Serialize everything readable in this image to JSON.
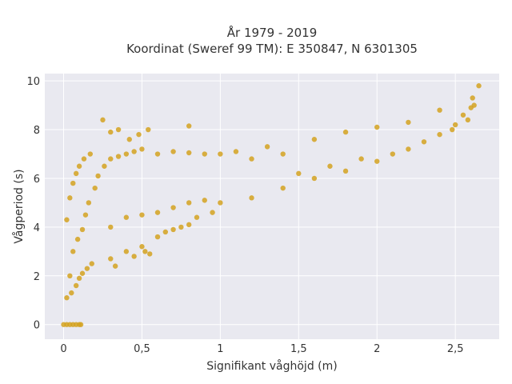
{
  "chart_data": {
    "type": "scatter",
    "title_line1": "År 1979 - 2019",
    "title_line2": "Koordinat (Sweref 99 TM): E 350847, N 6301305",
    "xlabel": "Signifikant våghöjd (m)",
    "ylabel": "Vågperiod (s)",
    "xlim": [
      -0.12,
      2.78
    ],
    "ylim": [
      -0.6,
      10.3
    ],
    "x_ticks": [
      0,
      0.5,
      1,
      1.5,
      2,
      2.5
    ],
    "x_tick_labels": [
      "0",
      "0,5",
      "1",
      "1,5",
      "2",
      "2,5"
    ],
    "y_ticks": [
      0,
      2,
      4,
      6,
      8,
      10
    ],
    "y_tick_labels": [
      "0",
      "2",
      "4",
      "6",
      "8",
      "10"
    ],
    "grid": true,
    "marker_color": "#D4A220",
    "plot_bg": "#E9E9F0",
    "points": [
      [
        0.0,
        0.0
      ],
      [
        0.02,
        0.0
      ],
      [
        0.04,
        0.0
      ],
      [
        0.06,
        0.0
      ],
      [
        0.08,
        0.0
      ],
      [
        0.1,
        0.0
      ],
      [
        0.11,
        0.0
      ],
      [
        0.02,
        1.1
      ],
      [
        0.05,
        1.3
      ],
      [
        0.08,
        1.6
      ],
      [
        0.1,
        1.9
      ],
      [
        0.12,
        2.1
      ],
      [
        0.15,
        2.3
      ],
      [
        0.18,
        2.5
      ],
      [
        0.02,
        4.3
      ],
      [
        0.04,
        5.2
      ],
      [
        0.06,
        5.8
      ],
      [
        0.08,
        6.2
      ],
      [
        0.1,
        6.5
      ],
      [
        0.13,
        6.8
      ],
      [
        0.17,
        7.0
      ],
      [
        0.25,
        8.4
      ],
      [
        0.3,
        7.9
      ],
      [
        0.35,
        8.0
      ],
      [
        0.42,
        7.6
      ],
      [
        0.48,
        7.8
      ],
      [
        0.54,
        8.0
      ],
      [
        0.8,
        8.15
      ],
      [
        0.3,
        2.7
      ],
      [
        0.4,
        3.0
      ],
      [
        0.5,
        3.2
      ],
      [
        0.55,
        2.9
      ],
      [
        0.6,
        3.6
      ],
      [
        0.7,
        3.9
      ],
      [
        0.8,
        4.1
      ],
      [
        1.0,
        5.0
      ],
      [
        1.2,
        5.2
      ],
      [
        1.4,
        5.6
      ],
      [
        1.6,
        6.0
      ],
      [
        1.8,
        6.3
      ],
      [
        2.0,
        6.7
      ],
      [
        2.2,
        7.2
      ],
      [
        1.1,
        7.1
      ],
      [
        1.3,
        7.3
      ],
      [
        1.6,
        7.6
      ],
      [
        1.8,
        7.9
      ],
      [
        2.0,
        8.1
      ],
      [
        2.2,
        8.3
      ],
      [
        2.4,
        8.8
      ],
      [
        2.5,
        8.2
      ],
      [
        2.55,
        8.6
      ],
      [
        2.6,
        8.9
      ],
      [
        2.62,
        9.0
      ],
      [
        2.65,
        9.8
      ],
      [
        2.61,
        9.3
      ],
      [
        2.58,
        8.4
      ],
      [
        0.04,
        2.0
      ],
      [
        0.06,
        3.0
      ],
      [
        0.09,
        3.5
      ],
      [
        0.12,
        3.9
      ],
      [
        0.14,
        4.5
      ],
      [
        0.16,
        5.0
      ],
      [
        0.2,
        5.6
      ],
      [
        0.22,
        6.1
      ],
      [
        0.26,
        6.5
      ],
      [
        0.3,
        6.8
      ],
      [
        0.35,
        6.9
      ],
      [
        0.4,
        7.0
      ],
      [
        0.45,
        7.1
      ],
      [
        0.5,
        7.2
      ],
      [
        0.6,
        7.0
      ],
      [
        0.7,
        7.1
      ],
      [
        0.8,
        7.05
      ],
      [
        0.9,
        7.0
      ],
      [
        1.0,
        7.0
      ],
      [
        1.2,
        6.8
      ],
      [
        1.4,
        7.0
      ],
      [
        0.3,
        4.0
      ],
      [
        0.4,
        4.4
      ],
      [
        0.5,
        4.5
      ],
      [
        0.6,
        4.6
      ],
      [
        0.7,
        4.8
      ],
      [
        0.8,
        5.0
      ],
      [
        0.9,
        5.1
      ],
      [
        1.5,
        6.2
      ],
      [
        1.7,
        6.5
      ],
      [
        1.9,
        6.8
      ],
      [
        2.1,
        7.0
      ],
      [
        2.3,
        7.5
      ],
      [
        2.4,
        7.8
      ],
      [
        2.48,
        8.0
      ],
      [
        0.33,
        2.4
      ],
      [
        0.45,
        2.8
      ],
      [
        0.52,
        3.0
      ],
      [
        0.65,
        3.8
      ],
      [
        0.75,
        4.0
      ],
      [
        0.85,
        4.4
      ],
      [
        0.95,
        4.6
      ]
    ]
  }
}
